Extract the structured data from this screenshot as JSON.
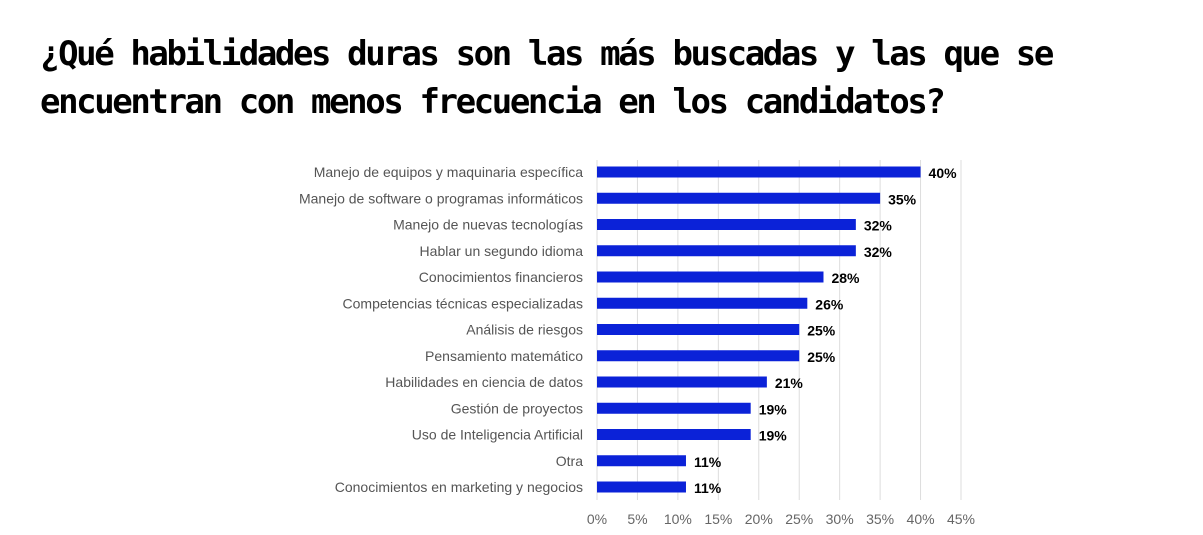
{
  "chart_data": {
    "type": "bar",
    "orientation": "horizontal",
    "title": "¿Qué habilidades duras son las más buscadas y las que se encuentran con menos frecuencia en los candidatos?",
    "title_lines": [
      "¿Qué habilidades duras son las más buscadas y las que se",
      "encuentran con menos frecuencia en los candidatos?"
    ],
    "categories": [
      "Manejo de equipos y maquinaria específica",
      "Manejo de software o programas informáticos",
      "Manejo de nuevas tecnologías",
      "Hablar un segundo idioma",
      "Conocimientos financieros",
      "Competencias técnicas especializadas",
      "Análisis de riesgos",
      "Pensamiento matemático",
      "Habilidades en ciencia de datos",
      "Gestión de proyectos",
      "Uso de Inteligencia Artificial",
      "Otra",
      "Conocimientos en marketing y negocios"
    ],
    "values": [
      40,
      35,
      32,
      32,
      28,
      26,
      25,
      25,
      21,
      19,
      19,
      11,
      11
    ],
    "data_labels": [
      "40%",
      "35%",
      "32%",
      "32%",
      "28%",
      "26%",
      "25%",
      "25%",
      "21%",
      "19%",
      "19%",
      "11%",
      "11%"
    ],
    "xlim": [
      0,
      45
    ],
    "x_ticks": [
      "0%",
      "5%",
      "10%",
      "15%",
      "20%",
      "25%",
      "30%",
      "35%",
      "40%",
      "45%"
    ],
    "xlabel": "",
    "ylabel": "",
    "grid": "vertical",
    "legend": "none",
    "bar_color": "#0b22d8",
    "grid_color": "#dddddd"
  }
}
